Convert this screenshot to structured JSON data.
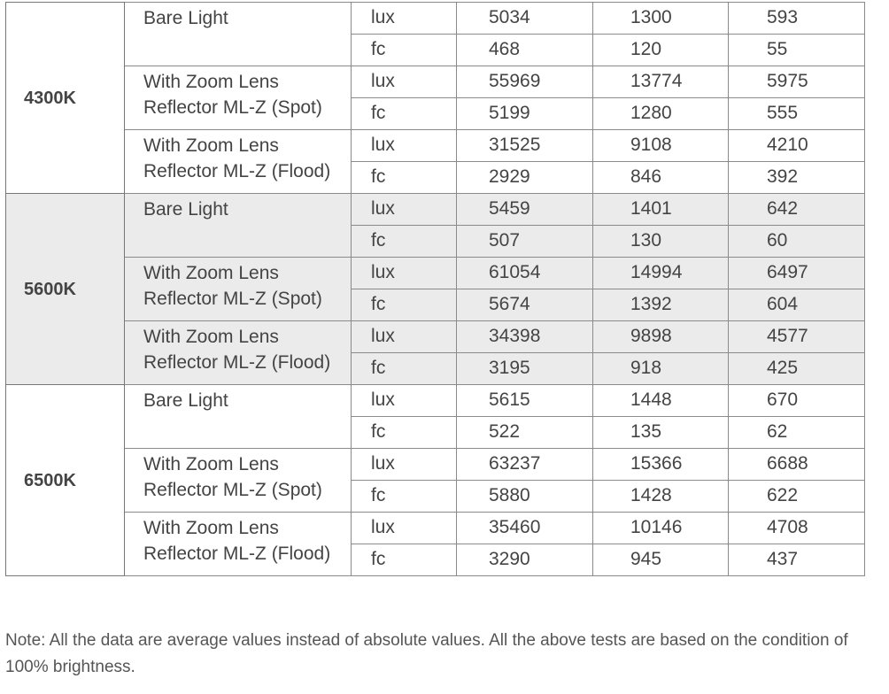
{
  "groups": [
    {
      "temp": "4300K",
      "shaded": false,
      "conditions": [
        {
          "name": "Bare Light",
          "rows": [
            [
              "lux",
              "5034",
              "1300",
              "593"
            ],
            [
              "fc",
              "468",
              "120",
              "55"
            ]
          ]
        },
        {
          "name": "With Zoom Lens Reflector ML-Z (Spot)",
          "rows": [
            [
              "lux",
              "55969",
              "13774",
              "5975"
            ],
            [
              "fc",
              "5199",
              "1280",
              "555"
            ]
          ]
        },
        {
          "name": "With Zoom Lens Reflector ML-Z (Flood)",
          "rows": [
            [
              "lux",
              "31525",
              "9108",
              "4210"
            ],
            [
              "fc",
              "2929",
              "846",
              "392"
            ]
          ]
        }
      ]
    },
    {
      "temp": "5600K",
      "shaded": true,
      "conditions": [
        {
          "name": "Bare Light",
          "rows": [
            [
              "lux",
              "5459",
              "1401",
              "642"
            ],
            [
              "fc",
              "507",
              "130",
              "60"
            ]
          ]
        },
        {
          "name": "With Zoom Lens Reflector ML-Z (Spot)",
          "rows": [
            [
              "lux",
              "61054",
              "14994",
              "6497"
            ],
            [
              "fc",
              "5674",
              "1392",
              "604"
            ]
          ]
        },
        {
          "name": "With Zoom Lens Reflector ML-Z (Flood)",
          "rows": [
            [
              "lux",
              "34398",
              "9898",
              "4577"
            ],
            [
              "fc",
              "3195",
              "918",
              "425"
            ]
          ]
        }
      ]
    },
    {
      "temp": "6500K",
      "shaded": false,
      "conditions": [
        {
          "name": "Bare Light",
          "rows": [
            [
              "lux",
              "5615",
              "1448",
              "670"
            ],
            [
              "fc",
              "522",
              "135",
              "62"
            ]
          ]
        },
        {
          "name": "With Zoom Lens Reflector ML-Z (Spot)",
          "rows": [
            [
              "lux",
              "63237",
              "15366",
              "6688"
            ],
            [
              "fc",
              "5880",
              "1428",
              "622"
            ]
          ]
        },
        {
          "name": "With Zoom Lens Reflector ML-Z (Flood)",
          "rows": [
            [
              "lux",
              "35460",
              "10146",
              "4708"
            ],
            [
              "fc",
              "3290",
              "945",
              "437"
            ]
          ]
        }
      ]
    }
  ],
  "note": "Note: All the data are average values instead of absolute values. All the above tests are based on the condition of 100% brightness.",
  "colors": {
    "shaded_row": "#ebebeb",
    "border": "#8a8a8a",
    "text": "#444444"
  }
}
